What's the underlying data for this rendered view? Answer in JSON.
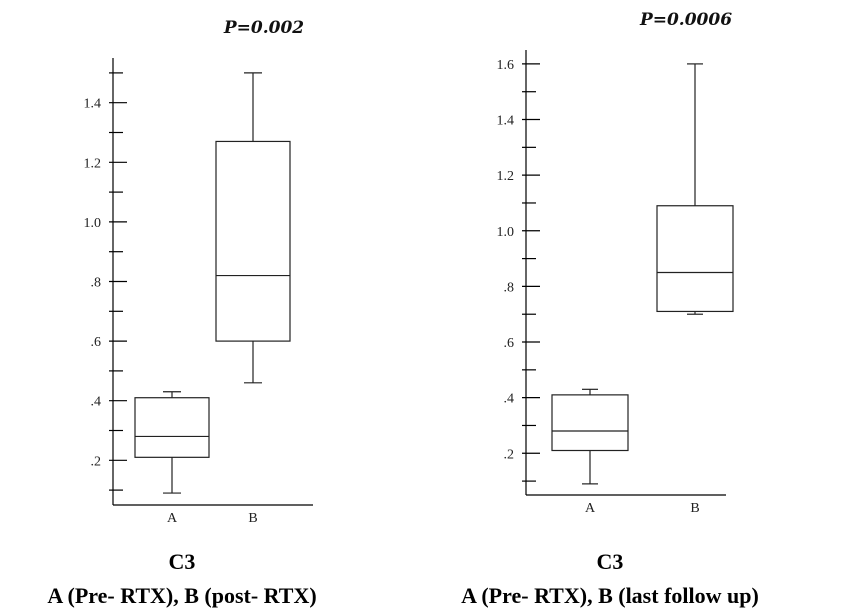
{
  "chart_data": [
    {
      "type": "box",
      "title": "P=0.002",
      "caption_line1": "C3",
      "caption_line2": "A (Pre- RTX), B (post- RTX)",
      "ylim": [
        0.05,
        1.55
      ],
      "y_ticks": [
        0.2,
        0.4,
        0.6,
        0.8,
        1.0,
        1.2,
        1.4
      ],
      "y_tick_labels": [
        ".2",
        ".4",
        ".6",
        ".8",
        "1.0",
        "1.2",
        "1.4"
      ],
      "y_minor_step": 0.1,
      "categories": [
        "A",
        "B"
      ],
      "boxes": [
        {
          "category": "A",
          "min": 0.09,
          "q1": 0.21,
          "median": 0.28,
          "q3": 0.41,
          "max": 0.43
        },
        {
          "category": "B",
          "min": 0.46,
          "q1": 0.6,
          "median": 0.82,
          "q3": 1.27,
          "max": 1.5
        }
      ]
    },
    {
      "type": "box",
      "title": "P=0.0006",
      "caption_line1": "C3",
      "caption_line2": "A (Pre- RTX), B (last follow up)",
      "ylim": [
        0.05,
        1.65
      ],
      "y_ticks": [
        0.2,
        0.4,
        0.6,
        0.8,
        1.0,
        1.2,
        1.4,
        1.6
      ],
      "y_tick_labels": [
        ".2",
        ".4",
        ".6",
        ".8",
        "1.0",
        "1.2",
        "1.4",
        "1.6"
      ],
      "y_minor_step": 0.1,
      "categories": [
        "A",
        "B"
      ],
      "boxes": [
        {
          "category": "A",
          "min": 0.09,
          "q1": 0.21,
          "median": 0.28,
          "q3": 0.41,
          "max": 0.43
        },
        {
          "category": "B",
          "min": 0.7,
          "q1": 0.71,
          "median": 0.85,
          "q3": 1.09,
          "max": 1.6
        }
      ]
    }
  ]
}
